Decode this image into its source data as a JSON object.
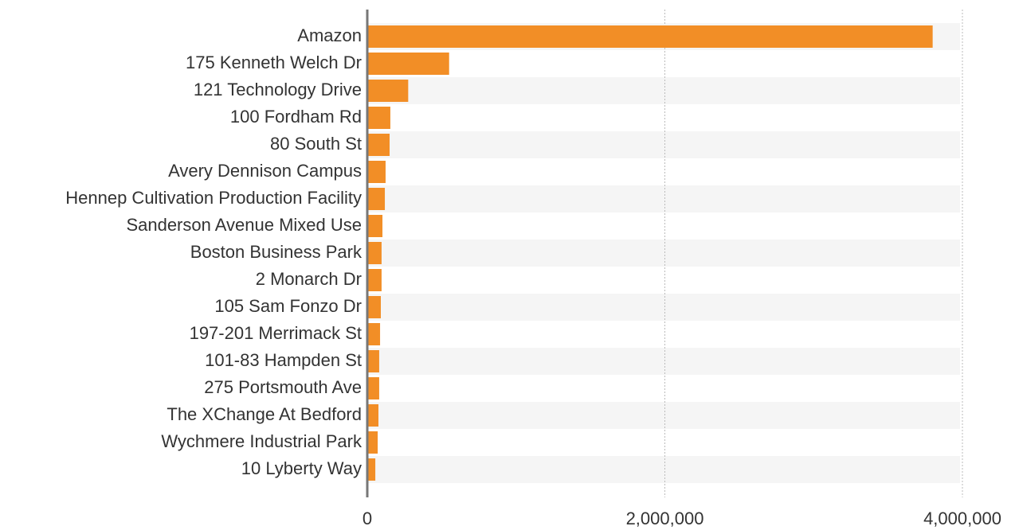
{
  "chart_data": {
    "type": "bar",
    "orientation": "horizontal",
    "categories": [
      "Amazon",
      "175 Kenneth Welch Dr",
      "121 Technology Drive",
      "100 Fordham Rd",
      "80 South St",
      "Avery Dennison Campus",
      "Hennep Cultivation Production Facility",
      "Sanderson Avenue Mixed Use",
      "Boston Business Park",
      "2 Monarch Dr",
      "105 Sam Fonzo Dr",
      "197-201 Merrimack St",
      "101-83 Hampden St",
      "275 Portsmouth Ave",
      "The XChange At Bedford",
      "Wychmere Industrial Park",
      "10 Lyberty Way"
    ],
    "values": [
      3800000,
      550000,
      275000,
      155000,
      150000,
      123000,
      118000,
      102000,
      96000,
      96000,
      91000,
      86000,
      80000,
      80000,
      75000,
      70000,
      54000
    ],
    "color": "#f28e26",
    "xlim": [
      0,
      4000000
    ],
    "xticks": [
      0,
      {
        "value": 2000000,
        "label": "2,000,000"
      },
      {
        "value": 4000000,
        "label": "4,000,000"
      }
    ],
    "grid": true
  }
}
